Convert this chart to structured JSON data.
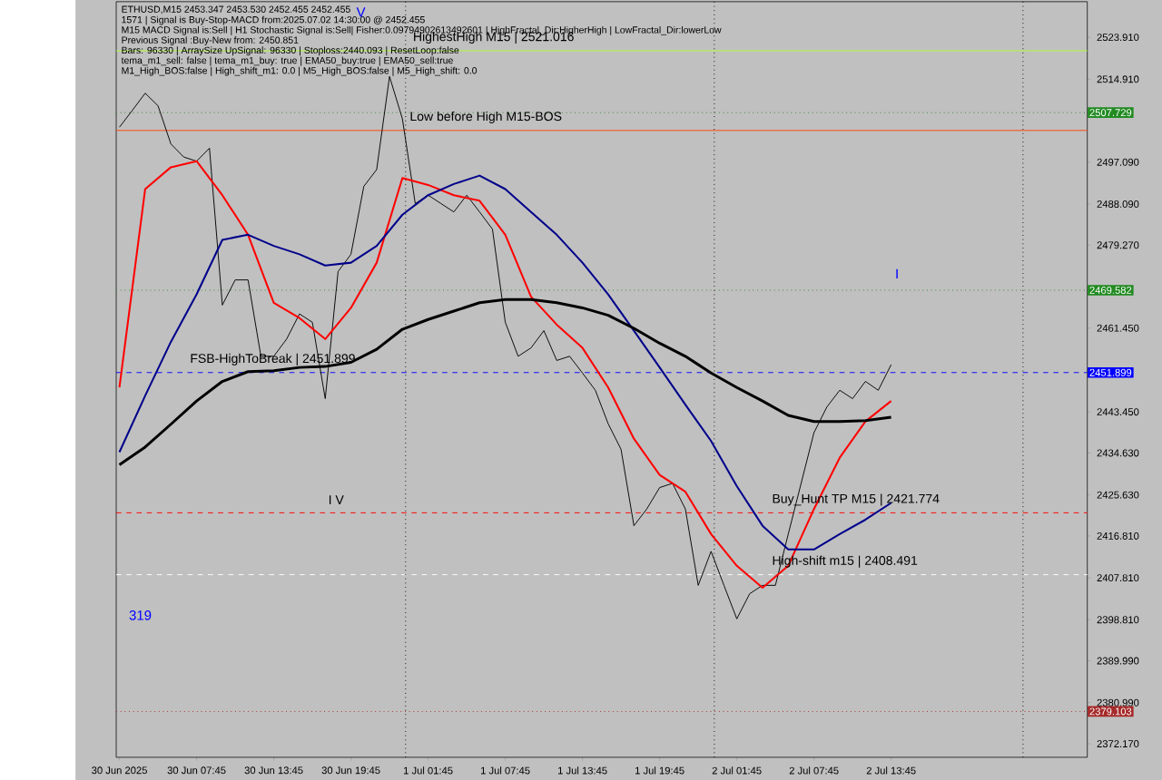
{
  "chart_data": {
    "type": "line",
    "annotations": [
      "ETHUSD,M15  2453.347 2453.530 2452.455 2452.455",
      "1571 | Signal is Buy-Stop-MACD from:2025.07.02 14:30:00 @ 2452.455",
      "M15 MACD Signal is:Sell | H1 Stochastic Signal is:Sell| Fisher:0.09794902613492601 | HighFractal_Dir:HigherHigh | LowFractal_Dir:lowerLow",
      "Previous Signal :Buy-New from: 2450.851",
      "Bars: 96330 | ArraySize UpSignal: 96330 | Stoploss:2440.093 | ResetLoop:false",
      "tema_m1_sell: false | tema_m1_buy: true | EMA50_buy:true | EMA50_sell:true",
      "M1_High_BOS:false | High_shift_m1: 0.0 | M5_High_BOS:false | M5_High_shift: 0.0",
      {
        "text": "HighestHigh   M15 | 2521.016",
        "x": "2025-07-01T00:25",
        "y": 2521.016
      },
      {
        "text": "Low before High   M15-BOS",
        "x": "2025-07-01T00:10",
        "y": 2503.9
      },
      {
        "text": "FSB-HighToBreak | 2451.899",
        "x": "2025-06-30T07:05",
        "y": 2451.899
      },
      {
        "text": "Buy_Hunt TP M15 | 2421.774",
        "x": "2025-07-02T04:20",
        "y": 2421.774
      },
      {
        "text": "High-shift m15 | 2408.491",
        "x": "2025-07-02T04:20",
        "y": 2408.491
      },
      "V",
      {
        "text": "I V",
        "x": "2025-06-30T17:50",
        "y": 2422.1
      },
      "319",
      "I"
    ],
    "xlim": [
      "2025-06-30T01:30",
      "2025-07-03T05:00"
    ],
    "ylim": [
      2369.26,
      2531.56
    ],
    "xticks": [
      {
        "value": "2025-06-30T01:45",
        "label": "30 Jun 2025"
      },
      {
        "value": "2025-06-30T07:45",
        "label": "30 Jun 07:45"
      },
      {
        "value": "2025-06-30T13:45",
        "label": "30 Jun 13:45"
      },
      {
        "value": "2025-06-30T19:45",
        "label": "30 Jun 19:45"
      },
      {
        "value": "2025-07-01T01:45",
        "label": "1 Jul 01:45"
      },
      {
        "value": "2025-07-01T07:45",
        "label": "1 Jul 07:45"
      },
      {
        "value": "2025-07-01T13:45",
        "label": "1 Jul 13:45"
      },
      {
        "value": "2025-07-01T19:45",
        "label": "1 Jul 19:45"
      },
      {
        "value": "2025-07-02T01:45",
        "label": "2 Jul 01:45"
      },
      {
        "value": "2025-07-02T07:45",
        "label": "2 Jul 07:45"
      },
      {
        "value": "2025-07-02T13:45",
        "label": "2 Jul 13:45"
      }
    ],
    "yticks": [
      {
        "value": 2523.91,
        "label": "2523.910"
      },
      {
        "value": 2514.91,
        "label": "2514.910"
      },
      {
        "value": 2497.09,
        "label": "2497.090"
      },
      {
        "value": 2488.09,
        "label": "2488.090"
      },
      {
        "value": 2479.27,
        "label": "2479.270"
      },
      {
        "value": 2461.45,
        "label": "2461.450"
      },
      {
        "value": 2443.45,
        "label": "2443.450"
      },
      {
        "value": 2434.63,
        "label": "2434.630"
      },
      {
        "value": 2425.63,
        "label": "2425.630"
      },
      {
        "value": 2416.81,
        "label": "2416.810"
      },
      {
        "value": 2407.81,
        "label": "2407.810"
      },
      {
        "value": 2398.81,
        "label": "2398.810"
      },
      {
        "value": 2389.99,
        "label": "2389.990"
      },
      {
        "value": 2380.99,
        "label": "2380.990"
      },
      {
        "value": 2372.17,
        "label": "2372.170"
      }
    ],
    "series": [
      {
        "color": "#000000",
        "x": [
          "2025-06-30T01:45",
          "2025-06-30T02:45",
          "2025-06-30T03:45",
          "2025-06-30T04:45",
          "2025-06-30T05:45",
          "2025-06-30T06:45",
          "2025-06-30T07:45",
          "2025-06-30T08:45",
          "2025-06-30T09:45",
          "2025-06-30T10:45",
          "2025-06-30T11:45",
          "2025-06-30T12:45",
          "2025-06-30T13:45",
          "2025-06-30T14:45",
          "2025-06-30T15:45",
          "2025-06-30T16:45",
          "2025-06-30T17:45",
          "2025-06-30T18:45",
          "2025-06-30T19:45",
          "2025-06-30T20:45",
          "2025-06-30T21:45",
          "2025-06-30T22:45",
          "2025-06-30T23:45",
          "2025-07-01T00:45",
          "2025-07-01T01:45",
          "2025-07-01T02:45",
          "2025-07-01T03:45",
          "2025-07-01T04:45",
          "2025-07-01T05:45",
          "2025-07-01T06:45",
          "2025-07-01T07:45",
          "2025-07-01T08:45",
          "2025-07-01T09:45",
          "2025-07-01T10:45",
          "2025-07-01T11:45",
          "2025-07-01T12:45",
          "2025-07-01T13:45",
          "2025-07-01T14:45",
          "2025-07-01T15:45",
          "2025-07-01T16:45",
          "2025-07-01T17:45",
          "2025-07-01T18:45",
          "2025-07-01T19:45",
          "2025-07-01T20:45",
          "2025-07-01T21:45",
          "2025-07-01T22:45",
          "2025-07-01T23:45",
          "2025-07-02T00:45",
          "2025-07-02T01:45",
          "2025-07-02T02:45",
          "2025-07-02T03:45",
          "2025-07-02T04:45",
          "2025-07-02T05:45",
          "2025-07-02T06:45",
          "2025-07-02T07:45",
          "2025-07-02T08:45",
          "2025-07-02T09:45",
          "2025-07-02T10:45",
          "2025-07-02T11:45",
          "2025-07-02T12:45",
          "2025-07-02T13:45"
        ],
        "values": [
          2504.6,
          2508.2,
          2511.9,
          2509.2,
          2501.0,
          2498.2,
          2497.3,
          2500.1,
          2466.4,
          2471.8,
          2471.8,
          2455.4,
          2455.4,
          2459.1,
          2464.5,
          2462.7,
          2446.3,
          2473.6,
          2477.3,
          2491.9,
          2495.5,
          2515.5,
          2506.4,
          2488.2,
          2490.0,
          2488.2,
          2486.4,
          2490.0,
          2486.4,
          2482.7,
          2462.7,
          2455.4,
          2457.2,
          2460.9,
          2454.5,
          2455.4,
          2451.8,
          2448.1,
          2440.9,
          2435.4,
          2419.0,
          2422.6,
          2427.2,
          2428.1,
          2422.6,
          2406.2,
          2413.5,
          2406.2,
          2399.0,
          2404.4,
          2406.2,
          2406.2,
          2417.2,
          2428.1,
          2439.0,
          2444.5,
          2448.1,
          2446.3,
          2450.0,
          2448.1,
          2453.6
        ]
      },
      {
        "color": "#ff0000",
        "x": [
          "2025-06-30T01:45",
          "2025-06-30T03:45",
          "2025-06-30T05:45",
          "2025-06-30T07:45",
          "2025-06-30T09:45",
          "2025-06-30T11:45",
          "2025-06-30T13:45",
          "2025-06-30T15:45",
          "2025-06-30T17:45",
          "2025-06-30T19:45",
          "2025-06-30T21:45",
          "2025-06-30T23:45",
          "2025-07-01T01:45",
          "2025-07-01T03:45",
          "2025-07-01T05:45",
          "2025-07-01T07:45",
          "2025-07-01T09:45",
          "2025-07-01T11:45",
          "2025-07-01T13:45",
          "2025-07-01T15:45",
          "2025-07-01T17:45",
          "2025-07-01T19:45",
          "2025-07-01T21:45",
          "2025-07-01T23:45",
          "2025-07-02T01:45",
          "2025-07-02T03:45",
          "2025-07-02T05:45",
          "2025-07-02T07:45",
          "2025-07-02T09:45",
          "2025-07-02T11:45",
          "2025-07-02T13:45"
        ],
        "values": [
          2448.7,
          2491.3,
          2496.0,
          2497.3,
          2490.0,
          2481.5,
          2466.9,
          2463.6,
          2459.1,
          2465.8,
          2475.5,
          2493.7,
          2492.2,
          2490.0,
          2488.8,
          2481.5,
          2468.2,
          2462.2,
          2457.2,
          2448.7,
          2437.7,
          2429.9,
          2426.3,
          2417.2,
          2410.4,
          2405.7,
          2410.4,
          2422.6,
          2433.6,
          2441.4,
          2445.8
        ]
      },
      {
        "color": "#00008b",
        "x": [
          "2025-06-30T01:45",
          "2025-06-30T03:45",
          "2025-06-30T05:45",
          "2025-06-30T07:45",
          "2025-06-30T09:45",
          "2025-06-30T11:45",
          "2025-06-30T13:45",
          "2025-06-30T15:45",
          "2025-06-30T17:45",
          "2025-06-30T19:45",
          "2025-06-30T21:45",
          "2025-06-30T23:45",
          "2025-07-01T01:45",
          "2025-07-01T03:45",
          "2025-07-01T05:45",
          "2025-07-01T07:45",
          "2025-07-01T09:45",
          "2025-07-01T11:45",
          "2025-07-01T13:45",
          "2025-07-01T15:45",
          "2025-07-01T17:45",
          "2025-07-01T19:45",
          "2025-07-01T21:45",
          "2025-07-01T23:45",
          "2025-07-02T01:45",
          "2025-07-02T03:45",
          "2025-07-02T05:45",
          "2025-07-02T07:45",
          "2025-07-02T09:45",
          "2025-07-02T11:45",
          "2025-07-02T13:45"
        ],
        "values": [
          2434.8,
          2446.9,
          2458.5,
          2468.7,
          2480.4,
          2481.5,
          2479.1,
          2477.3,
          2474.9,
          2475.5,
          2479.1,
          2485.8,
          2490.0,
          2492.4,
          2494.2,
          2491.3,
          2486.4,
          2481.5,
          2475.5,
          2468.7,
          2460.9,
          2453.0,
          2445.0,
          2437.2,
          2427.5,
          2419.0,
          2413.9,
          2413.9,
          2417.2,
          2420.3,
          2423.9
        ]
      },
      {
        "color": "#000000",
        "x": [
          "2025-06-30T01:45",
          "2025-06-30T03:45",
          "2025-06-30T05:45",
          "2025-06-30T07:45",
          "2025-06-30T09:45",
          "2025-06-30T11:45",
          "2025-06-30T13:45",
          "2025-06-30T15:45",
          "2025-06-30T17:45",
          "2025-06-30T19:45",
          "2025-06-30T21:45",
          "2025-06-30T23:45",
          "2025-07-01T01:45",
          "2025-07-01T03:45",
          "2025-07-01T05:45",
          "2025-07-01T07:45",
          "2025-07-01T09:45",
          "2025-07-01T11:45",
          "2025-07-01T13:45",
          "2025-07-01T15:45",
          "2025-07-01T17:45",
          "2025-07-01T19:45",
          "2025-07-01T21:45",
          "2025-07-01T23:45",
          "2025-07-02T01:45",
          "2025-07-02T03:45",
          "2025-07-02T05:45",
          "2025-07-02T07:45",
          "2025-07-02T09:45",
          "2025-07-02T11:45",
          "2025-07-02T13:45"
        ],
        "values": [
          2432.1,
          2435.9,
          2440.8,
          2445.8,
          2450.0,
          2452.1,
          2452.3,
          2453.0,
          2453.2,
          2454.1,
          2456.9,
          2461.2,
          2463.3,
          2465.1,
          2466.9,
          2467.6,
          2467.6,
          2466.9,
          2465.8,
          2464.2,
          2461.4,
          2458.2,
          2455.4,
          2451.8,
          2448.7,
          2445.8,
          2442.7,
          2441.4,
          2441.4,
          2441.6,
          2442.3
        ]
      }
    ],
    "ref_lines": [
      {
        "axis": "y",
        "value": 2507.729,
        "label": "2507.729",
        "color": "#228b22",
        "line_style": "dotted"
      },
      {
        "axis": "y",
        "value": 2469.582,
        "label": "2469.582",
        "color": "#228b22",
        "line_style": "dotted"
      },
      {
        "axis": "y",
        "value": 2451.899,
        "label": "2451.899",
        "color": "#0000ff",
        "line_style": "dashed"
      },
      {
        "axis": "y",
        "value": 2379.103,
        "label": "2379.103",
        "color": "#a52a2a",
        "line_style": "dotted"
      },
      {
        "axis": "y",
        "value": 2421.774,
        "color": "#ff0000",
        "line_style": "dashed"
      },
      {
        "axis": "y",
        "value": 2521.016,
        "color": "#adff2f",
        "line_style": "solid"
      },
      {
        "axis": "y",
        "value": 2503.9,
        "color": "#ff4500",
        "line_style": "solid"
      },
      {
        "axis": "y",
        "value": 2408.491,
        "color": "#ffffff",
        "line_style": "dashed"
      },
      {
        "axis": "x",
        "value": "2025-07-01T00:00",
        "color": "#000000",
        "line_style": "dotted"
      },
      {
        "axis": "x",
        "value": "2025-07-02T00:00",
        "color": "#000000",
        "line_style": "dotted"
      },
      {
        "axis": "x",
        "value": "2025-07-03T00:00",
        "color": "#000000",
        "line_style": "dotted"
      }
    ]
  }
}
